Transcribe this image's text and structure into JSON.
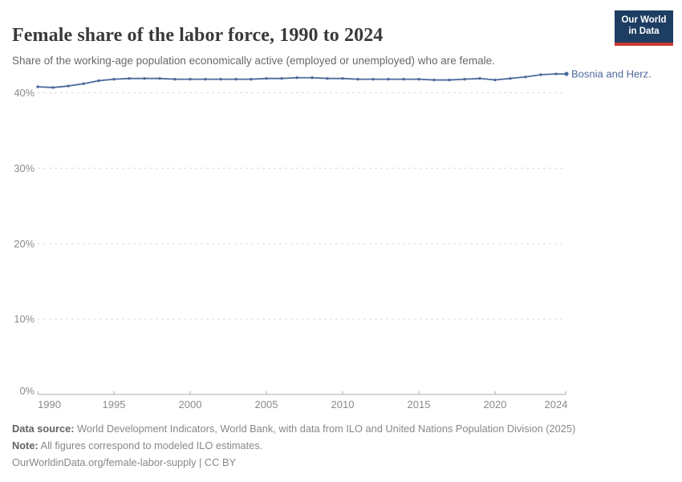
{
  "header": {
    "title": "Female share of the labor force, 1990 to 2024",
    "subtitle": "Share of the working-age population economically active (employed or unemployed) who are female.",
    "logo": {
      "line1": "Our World",
      "line2": "in Data",
      "bg_color": "#1d3d63",
      "accent_color": "#c93a32"
    }
  },
  "chart_data": {
    "type": "line",
    "title": "Female share of the labor force, 1990 to 2024",
    "xlabel": "",
    "ylabel": "",
    "grid": "horizontal-dashed",
    "legend_position": "end-of-line-label",
    "xlim": [
      1990,
      2024
    ],
    "ylim": [
      0,
      43
    ],
    "x_tick_labels": [
      1990,
      1995,
      2000,
      2005,
      2010,
      2015,
      2020,
      2024
    ],
    "y_tick_labels": [
      "0%",
      "10%",
      "20%",
      "30%",
      "40%"
    ],
    "series": [
      {
        "name": "Bosnia and Herz.",
        "color": "#4C6A9C",
        "x": [
          1990,
          1991,
          1992,
          1993,
          1994,
          1995,
          1996,
          1997,
          1998,
          1999,
          2000,
          2001,
          2002,
          2003,
          2004,
          2005,
          2006,
          2007,
          2008,
          2009,
          2010,
          2011,
          2012,
          2013,
          2014,
          2015,
          2016,
          2017,
          2018,
          2019,
          2020,
          2021,
          2022,
          2023,
          2024
        ],
        "values": [
          40.8,
          40.7,
          40.9,
          41.2,
          41.6,
          41.8,
          41.9,
          41.9,
          41.9,
          41.8,
          41.8,
          41.8,
          41.8,
          41.8,
          41.8,
          41.9,
          41.9,
          42.0,
          42.0,
          41.9,
          41.9,
          41.8,
          41.8,
          41.8,
          41.8,
          41.8,
          41.7,
          41.7,
          41.8,
          41.9,
          41.7,
          41.9,
          42.1,
          42.4,
          42.5
        ]
      }
    ],
    "colors": {
      "gridline": "#dcdcdc",
      "axis": "#a8a8a8",
      "tick_label": "#8b8b8b"
    }
  },
  "footer": {
    "data_source_label": "Data source:",
    "data_source_text": " World Development Indicators, World Bank, with data from ILO and United Nations Population Division (2025)",
    "note_label": "Note:",
    "note_text": " All figures correspond to modeled ILO estimates.",
    "url_text": "OurWorldinData.org/female-labor-supply | CC BY"
  }
}
